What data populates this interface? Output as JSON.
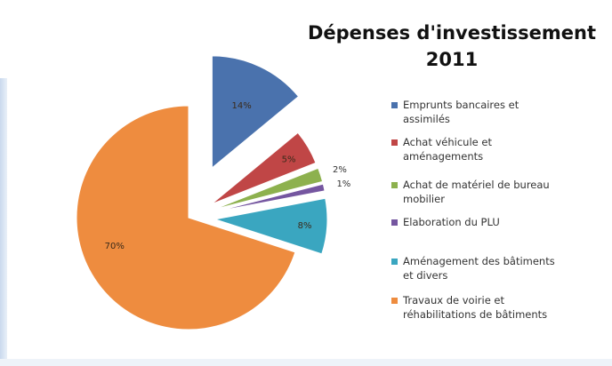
{
  "chart_data": {
    "type": "pie",
    "title_lines": [
      "Dépenses d'investissement",
      "2011"
    ],
    "slices": [
      {
        "label_lines": [
          "Emprunts bancaires et",
          "assimilés"
        ],
        "value": 14,
        "text": "14%",
        "color": "#4a72ad"
      },
      {
        "label_lines": [
          "Achat véhicule et",
          "aménagements"
        ],
        "value": 5,
        "text": "5%",
        "color": "#c04646"
      },
      {
        "label_lines": [
          "Achat de matériel de bureau",
          "mobilier"
        ],
        "value": 2,
        "text": "2%",
        "color": "#8db14e"
      },
      {
        "label_lines": [
          "Elaboration du PLU"
        ],
        "value": 1,
        "text": "1%",
        "color": "#7556a0"
      },
      {
        "label_lines": [
          "Aménagement des bâtiments",
          "et divers"
        ],
        "value": 8,
        "text": "8%",
        "color": "#3aa6c0"
      },
      {
        "label_lines": [
          "Travaux de voirie et",
          "réhabilitations de bâtiments"
        ],
        "value": 70,
        "text": "70%",
        "color": "#ee8c3f"
      }
    ],
    "legend_position": "right",
    "exploded": true
  }
}
